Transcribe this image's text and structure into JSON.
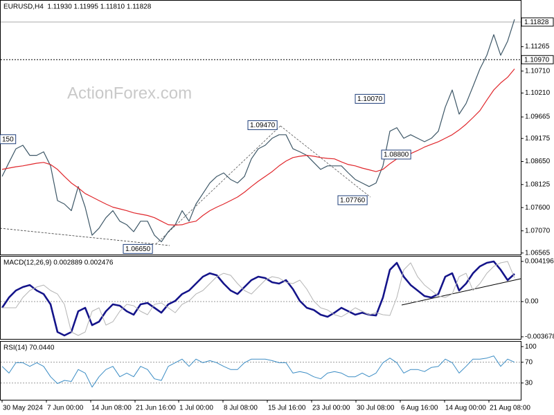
{
  "chart_data": [
    {
      "type": "line",
      "title": "EURUSD,H4  1.11930 1.11995 1.11810 1.11828",
      "watermark": "ActionForex.com",
      "x": [
        0,
        1,
        2,
        3,
        4,
        5,
        6,
        7,
        8,
        9,
        10,
        11,
        12,
        13,
        14,
        15,
        16,
        17,
        18,
        19,
        20,
        21,
        22,
        23,
        24,
        25,
        26,
        27,
        28,
        29,
        30,
        31,
        32,
        33,
        34,
        35,
        36,
        37,
        38,
        39,
        40,
        41,
        42,
        43,
        44,
        45,
        46,
        47,
        48,
        49,
        50,
        51,
        52,
        53,
        54,
        55,
        56,
        57,
        58,
        59,
        60,
        61,
        62,
        63,
        64,
        65,
        66,
        67,
        68,
        69,
        70,
        71,
        72,
        73,
        74
      ],
      "xlim": [
        -0.3,
        74.9
      ],
      "xticks": [
        {
          "value": 0,
          "label": "30 May 2024"
        },
        {
          "value": 6.4,
          "label": "7 Jun 00:00"
        },
        {
          "value": 12.8,
          "label": "14 Jun 08:00"
        },
        {
          "value": 19.2,
          "label": "21 Jun 16:00"
        },
        {
          "value": 25.5,
          "label": "1 Jul 00:00"
        },
        {
          "value": 31.9,
          "label": "8 Jul 08:00"
        },
        {
          "value": 38.3,
          "label": "15 Jul 16:00"
        },
        {
          "value": 44.7,
          "label": "23 Jul 00:00"
        },
        {
          "value": 51.1,
          "label": "30 Jul 08:00"
        },
        {
          "value": 57.5,
          "label": "6 Aug 16:00"
        },
        {
          "value": 63.9,
          "label": "14 Aug 00:00"
        },
        {
          "value": 70.3,
          "label": "21 Aug 08:00"
        }
      ],
      "ylim": [
        1.0653,
        1.1233
      ],
      "yticks": [
        1.11265,
        {
          "value": 1.1071,
          "label": "1.10710"
        },
        {
          "value": 1.1021,
          "label": "1.10210"
        },
        1.09665,
        1.09175,
        {
          "value": 1.0865,
          "label": "1.08650"
        },
        1.08125,
        {
          "value": 1.076,
          "label": "1.07600"
        },
        {
          "value": 1.0707,
          "label": "1.07070"
        },
        1.06565
      ],
      "price_lines": [
        {
          "value": 1.11828,
          "style": "solid"
        },
        {
          "value": 1.1097,
          "label": "1.10970",
          "style": "dotted"
        }
      ],
      "annotations": [
        {
          "text": "150",
          "x": -0.3,
          "y": 1.0915
        },
        {
          "text": "1.09470",
          "x": 35.5,
          "y": 1.0947
        },
        {
          "text": "1.06650",
          "x": 17.5,
          "y": 1.0665
        },
        {
          "text": "1.10070",
          "x": 51,
          "y": 1.1007
        },
        {
          "text": "1.08800",
          "x": 54.8,
          "y": 1.088
        },
        {
          "text": "1.07760",
          "x": 48.5,
          "y": 1.0776
        }
      ],
      "series": [
        {
          "color": "#3c5666",
          "values": [
            1.0831,
            1.0863,
            1.0894,
            1.0902,
            1.0879,
            1.0879,
            1.0887,
            1.0855,
            1.0776,
            1.0768,
            1.0753,
            1.0808,
            1.0761,
            1.0697,
            1.0713,
            1.0737,
            1.0753,
            1.0729,
            1.0721,
            1.0705,
            1.0729,
            1.0729,
            1.0697,
            1.0682,
            1.0705,
            1.0721,
            1.0753,
            1.0729,
            1.0768,
            1.0792,
            1.0816,
            1.0831,
            1.0839,
            1.0824,
            1.0816,
            1.0831,
            1.0871,
            1.0894,
            1.0902,
            1.0918,
            1.0926,
            1.0926,
            1.0894,
            1.0887,
            1.0879,
            1.0863,
            1.0847,
            1.0855,
            1.0855,
            1.0855,
            1.0839,
            1.0824,
            1.0816,
            1.0808,
            1.0816,
            1.0855,
            1.0934,
            1.0942,
            1.0918,
            1.0926,
            1.0918,
            1.091,
            1.0918,
            1.0934,
            1.0989,
            1.1028,
            1.0973,
            1.0997,
            1.1036,
            1.1076,
            1.1107,
            1.1154,
            1.1107,
            1.1139,
            1.1189
          ]
        },
        {
          "color": "#e0262b",
          "values": [
            1.0847,
            1.085,
            1.0853,
            1.0855,
            1.0858,
            1.0861,
            1.0863,
            1.0858,
            1.0847,
            1.0831,
            1.0816,
            1.0805,
            1.0792,
            1.0784,
            1.0776,
            1.0768,
            1.0761,
            1.0757,
            1.0753,
            1.0748,
            1.0745,
            1.0742,
            1.0737,
            1.0729,
            1.0721,
            1.072,
            1.0721,
            1.0726,
            1.0729,
            1.0742,
            1.0753,
            1.0761,
            1.0768,
            1.0776,
            1.0784,
            1.0795,
            1.0808,
            1.082,
            1.0831,
            1.0842,
            1.0855,
            1.0866,
            1.0874,
            1.0877,
            1.0879,
            1.0877,
            1.0874,
            1.0872,
            1.0871,
            1.0864,
            1.0858,
            1.0855,
            1.085,
            1.0846,
            1.0842,
            1.0847,
            1.086,
            1.0871,
            1.0877,
            1.0883,
            1.089,
            1.0898,
            1.0904,
            1.091,
            1.0918,
            1.0926,
            1.0937,
            1.095,
            1.0965,
            1.0981,
            1.1005,
            1.1028,
            1.1044,
            1.1057,
            1.1076
          ]
        }
      ]
    },
    {
      "type": "line",
      "title": "MACD(12,26,9) 0.002889 0.002476",
      "ylim": [
        -0.0039,
        0.00477
      ],
      "yticks": [
        0.004196,
        {
          "value": 0,
          "label": "0.00"
        },
        -0.003678
      ],
      "levels": [
        0
      ],
      "series": [
        {
          "color": "#14148a",
          "width": 2.6,
          "values": [
            -0.00065,
            0.00043,
            0.00116,
            0.00152,
            0.00173,
            0.00116,
            0.00079,
            -0.00029,
            -0.00318,
            -0.00354,
            -0.00318,
            -0.00101,
            -0.00065,
            -0.00246,
            -0.0021,
            -0.00101,
            -0.00029,
            -0.00043,
            -0.00101,
            -0.00137,
            -0.00029,
            -0.00014,
            -0.00065,
            -0.00116,
            -0.00029,
            7e-05,
            0.00079,
            0.00116,
            0.00188,
            0.0026,
            0.00296,
            0.00275,
            0.00188,
            0.00116,
            0.00079,
            0.00152,
            0.00224,
            0.0026,
            0.00246,
            0.00202,
            0.00188,
            0.00224,
            0.0013,
            7e-05,
            -0.00065,
            -0.00087,
            -0.00137,
            -0.00159,
            -0.00116,
            -0.00065,
            -0.00101,
            -0.00137,
            -0.00116,
            -0.00137,
            -0.00145,
            0.00043,
            0.00332,
            0.00405,
            0.0026,
            0.00173,
            0.00116,
            0.00058,
            0.00043,
            0.00079,
            0.0026,
            0.00296,
            0.00116,
            0.00188,
            0.00296,
            0.00368,
            0.00405,
            0.00419,
            0.00332,
            0.00224,
            0.00289
          ]
        },
        {
          "color": "#b4b4b4",
          "width": 1,
          "values": [
            -0.00065,
            -0.00065,
            -0.00065,
            0.00043,
            0.00116,
            0.00152,
            0.00173,
            0.00116,
            0.00079,
            -0.00029,
            -0.00318,
            -0.00354,
            -0.00318,
            -0.00101,
            -0.00065,
            -0.00246,
            -0.0021,
            -0.00101,
            -0.00029,
            -0.00043,
            -0.00101,
            -0.00137,
            -0.00029,
            -0.00014,
            -0.00065,
            -0.00116,
            -0.00029,
            7e-05,
            0.00079,
            0.00116,
            0.00188,
            0.0026,
            0.00296,
            0.00275,
            0.00188,
            0.00116,
            0.00079,
            0.00152,
            0.00224,
            0.0026,
            0.00246,
            0.00202,
            0.00188,
            0.00224,
            0.0013,
            7e-05,
            -0.00065,
            -0.00087,
            -0.00137,
            -0.00159,
            -0.00116,
            -0.00065,
            -0.00101,
            -0.00137,
            -0.00116,
            -0.00137,
            -0.00145,
            0.00043,
            0.00332,
            0.00405,
            0.0026,
            0.00173,
            0.00116,
            0.00058,
            0.00043,
            0.00079,
            0.0026,
            0.00296,
            0.00116,
            0.00188,
            0.00296,
            0.00368,
            0.00405,
            0.00419,
            0.00248
          ]
        }
      ]
    },
    {
      "type": "line",
      "title": "RSI(14) 70.0440",
      "ylim": [
        -2.3,
        110.8
      ],
      "yticks": [
        100,
        70,
        30
      ],
      "levels": [
        70,
        30
      ],
      "series": [
        {
          "color": "#3a8cc4",
          "width": 1,
          "values": [
            62,
            49,
            69,
            69,
            62,
            69,
            62,
            42,
            29,
            35,
            33,
            56,
            49,
            22,
            42,
            56,
            62,
            42,
            49,
            42,
            62,
            56,
            38,
            35,
            62,
            69,
            76,
            62,
            76,
            69,
            73,
            69,
            62,
            56,
            56,
            69,
            76,
            76,
            76,
            73,
            69,
            69,
            49,
            52,
            49,
            42,
            38,
            49,
            52,
            49,
            42,
            42,
            49,
            42,
            49,
            69,
            78,
            69,
            49,
            56,
            56,
            52,
            60,
            62,
            76,
            69,
            49,
            62,
            76,
            76,
            78,
            82,
            62,
            76,
            70
          ]
        }
      ]
    }
  ]
}
